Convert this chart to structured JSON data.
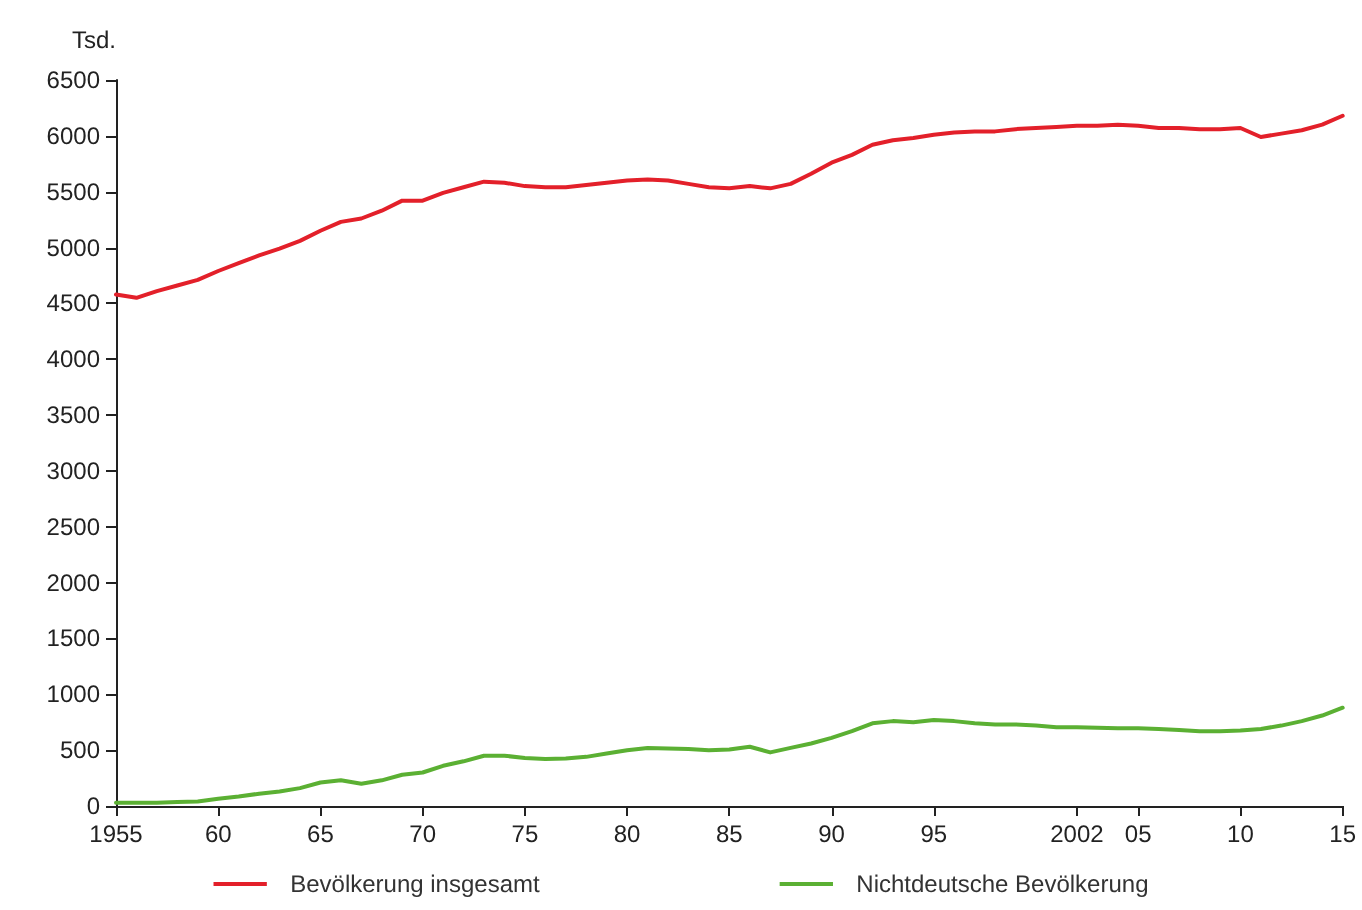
{
  "chart_data": {
    "type": "line",
    "ylabel": "Tsd.",
    "x": [
      1955,
      1956,
      1957,
      1958,
      1959,
      1960,
      1961,
      1962,
      1963,
      1964,
      1965,
      1966,
      1967,
      1968,
      1969,
      1970,
      1971,
      1972,
      1973,
      1974,
      1975,
      1976,
      1977,
      1978,
      1979,
      1980,
      1981,
      1982,
      1983,
      1984,
      1985,
      1986,
      1987,
      1988,
      1989,
      1990,
      1991,
      1992,
      1993,
      1994,
      1995,
      1996,
      1997,
      1998,
      1999,
      2000,
      2001,
      2002,
      2003,
      2004,
      2005,
      2006,
      2007,
      2008,
      2009,
      2010,
      2011,
      2012,
      2013,
      2014,
      2015
    ],
    "series": [
      {
        "name": "Bevölkerung insgesamt",
        "color": "#e3202a",
        "values": [
          4580,
          4550,
          4610,
          4660,
          4710,
          4790,
          4860,
          4930,
          4990,
          5060,
          5150,
          5230,
          5260,
          5330,
          5420,
          5420,
          5490,
          5540,
          5590,
          5580,
          5550,
          5540,
          5540,
          5560,
          5580,
          5600,
          5610,
          5600,
          5570,
          5540,
          5530,
          5550,
          5530,
          5570,
          5660,
          5760,
          5830,
          5920,
          5960,
          5980,
          6010,
          6030,
          6040,
          6040,
          6060,
          6070,
          6080,
          6090,
          6090,
          6100,
          6090,
          6070,
          6070,
          6060,
          6060,
          6070,
          5990,
          6020,
          6050,
          6100,
          6180
        ]
      },
      {
        "name": "Nichtdeutsche Bevölkerung",
        "color": "#5bb033",
        "values": [
          30,
          30,
          30,
          35,
          40,
          65,
          85,
          110,
          130,
          160,
          210,
          230,
          200,
          230,
          280,
          300,
          360,
          400,
          450,
          450,
          430,
          420,
          425,
          440,
          470,
          500,
          520,
          515,
          510,
          500,
          505,
          530,
          480,
          520,
          560,
          610,
          670,
          740,
          760,
          750,
          770,
          760,
          740,
          730,
          730,
          720,
          705,
          705,
          700,
          695,
          695,
          690,
          680,
          670,
          670,
          675,
          690,
          720,
          760,
          810,
          880
        ]
      }
    ],
    "xlim": [
      1955,
      2015
    ],
    "xticks": [
      {
        "value": 1955,
        "label": "1955"
      },
      {
        "value": 1960,
        "label": "60"
      },
      {
        "value": 1965,
        "label": "65"
      },
      {
        "value": 1970,
        "label": "70"
      },
      {
        "value": 1975,
        "label": "75"
      },
      {
        "value": 1980,
        "label": "80"
      },
      {
        "value": 1985,
        "label": "85"
      },
      {
        "value": 1990,
        "label": "90"
      },
      {
        "value": 1995,
        "label": "95"
      },
      {
        "value": 2002,
        "label": "2002"
      },
      {
        "value": 2005,
        "label": "05"
      },
      {
        "value": 2010,
        "label": "10"
      },
      {
        "value": 2015,
        "label": "15"
      }
    ],
    "ylim": [
      0,
      6500
    ],
    "yticks": [
      0,
      500,
      1000,
      1500,
      2000,
      2500,
      3000,
      3500,
      4000,
      4500,
      5000,
      5500,
      6000,
      6500
    ],
    "grid": false,
    "legend": "bottom",
    "marker": "none",
    "line_style": "solid"
  }
}
